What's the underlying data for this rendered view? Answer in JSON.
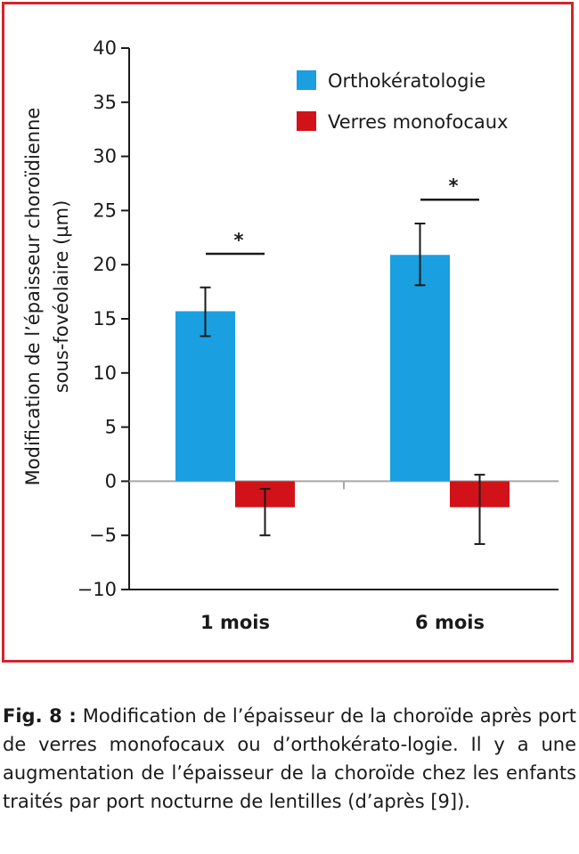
{
  "chart_data": {
    "type": "bar",
    "ylabel_line1": "Modification de l’épaisseur choroïdienne",
    "ylabel_line2": "sous-fovéolaire (µm)",
    "xlabel": "",
    "ylim": [
      -10,
      40
    ],
    "yticks": [
      40,
      35,
      30,
      25,
      20,
      15,
      10,
      5,
      0,
      -5,
      -10
    ],
    "ytick_labels": [
      "40",
      "35",
      "30",
      "25",
      "20",
      "15",
      "10",
      "5",
      "0",
      "−5",
      "−10"
    ],
    "categories": [
      "1 mois",
      "6 mois"
    ],
    "series": [
      {
        "name": "Orthokératologie",
        "color": "#1a9fe0",
        "values": [
          15.7,
          20.9
        ],
        "err_low": [
          13.4,
          18.1
        ],
        "err_high": [
          17.9,
          23.8
        ]
      },
      {
        "name": "Verres monofocaux",
        "color": "#d21219",
        "values": [
          -2.4,
          -2.4
        ],
        "err_low": [
          -5.0,
          -5.8
        ],
        "err_high": [
          -0.7,
          0.6
        ]
      }
    ],
    "significance": [
      {
        "category": "1 mois",
        "label": "*",
        "y": 21
      },
      {
        "category": "6 mois",
        "label": "*",
        "y": 26
      }
    ],
    "legend_position": "top-right",
    "grid": false
  },
  "caption": {
    "label": "Fig. 8 :",
    "text": "Modification de l’épaisseur de la choroïde après port de verres monofocaux ou d’orthokérato-logie. Il y a une augmentation de l’épaisseur de la choroïde chez les enfants traités par port nocturne de lentilles (d’après [9])."
  }
}
